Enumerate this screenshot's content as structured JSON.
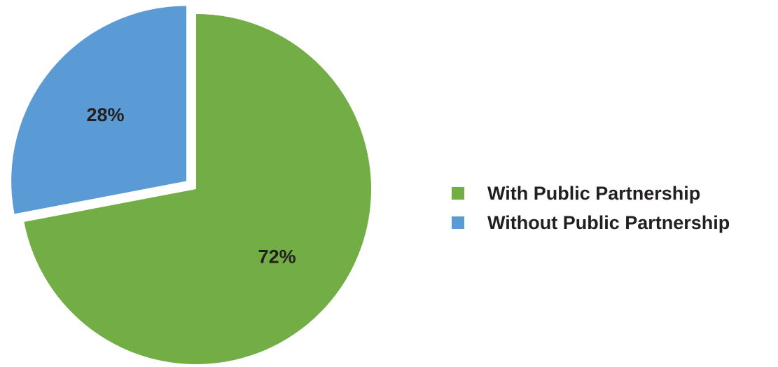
{
  "chart_data": {
    "type": "pie",
    "title": "",
    "slices": [
      {
        "name": "With Public Partnership",
        "value": 72,
        "label": "72%",
        "color": "#72ad45"
      },
      {
        "name": "Without Public Partnership",
        "value": 28,
        "label": "28%",
        "color": "#5b9bd5"
      }
    ],
    "exploded_slice": "Without Public Partnership",
    "legend_position": "right"
  },
  "legend": {
    "items": [
      {
        "label": "With Public Partnership",
        "color": "#72ad45"
      },
      {
        "label": "Without Public Partnership",
        "color": "#5b9bd5"
      }
    ]
  }
}
